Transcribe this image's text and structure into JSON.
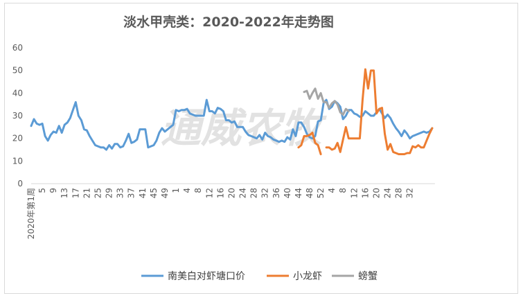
{
  "chart_data": {
    "type": "line",
    "title": "淡水甲壳类：2020-2022年走势图",
    "watermark": "通威农牧",
    "ylim": [
      0,
      60
    ],
    "yticks": [
      "0",
      "10",
      "20",
      "30",
      "40",
      "50",
      "60"
    ],
    "first_x_label": "2020年第1周",
    "x_tick_labels": [
      "5",
      "9",
      "13",
      "17",
      "21",
      "25",
      "29",
      "33",
      "37",
      "41",
      "45",
      "49",
      "1",
      "4",
      "8",
      "12",
      "16",
      "20",
      "24",
      "28",
      "32",
      "36",
      "40",
      "44",
      "48",
      "52",
      "4",
      "8",
      "12",
      "16",
      "20",
      "24",
      "28",
      "32"
    ],
    "grid": false,
    "legend_position": "bottom",
    "series": [
      {
        "name": "南美白对虾塘口价",
        "color": "#5b9bd5",
        "start_index": 0,
        "values": [
          25.5,
          28.5,
          26.5,
          26,
          26.5,
          21,
          19,
          21.5,
          23,
          22.5,
          25.5,
          22.5,
          26,
          27,
          29,
          32.5,
          36,
          30,
          28,
          24,
          23.5,
          21,
          19,
          17,
          16.5,
          16,
          16,
          15,
          17,
          15.5,
          17.5,
          17.5,
          16,
          16.5,
          19,
          22,
          18,
          18.5,
          19.5,
          24,
          24,
          24,
          16,
          16.5,
          17,
          19,
          22.5,
          24.5,
          23,
          24,
          25,
          26,
          32.5,
          32,
          32.5,
          32.5,
          33,
          31,
          30.5,
          30,
          30,
          30,
          30,
          37,
          32,
          32,
          31,
          33.5,
          33,
          32,
          28,
          28,
          27,
          27.5,
          25,
          25,
          25,
          23,
          21.5,
          21,
          20.5,
          20,
          21.5,
          19.5,
          22.5,
          21,
          20.5,
          19.5,
          19,
          18.5,
          19,
          18.5,
          20.5,
          19.5,
          24,
          21,
          27,
          27,
          25,
          22,
          20.5,
          20,
          21,
          27.5,
          28,
          35.5,
          37,
          33,
          34,
          36.5,
          35.5,
          34,
          28.5,
          30,
          32.5,
          32.5,
          31,
          30.5,
          29.5,
          30,
          32,
          31,
          30,
          30,
          31.5,
          33,
          31,
          29,
          30.5,
          29,
          26.5,
          24.5,
          23,
          21,
          23.5,
          22,
          20,
          21,
          21.5,
          22,
          22.5,
          23,
          22.5,
          23,
          24.5
        ]
      },
      {
        "name": "小龙虾",
        "color": "#ed7d31",
        "segments": [
          {
            "start_index": 96,
            "values": [
              16,
              17,
              21,
              21,
              21.5,
              22.5,
              18,
              17,
              13
            ]
          },
          {
            "start_index": 106,
            "values": [
              16,
              16,
              15,
              15.5,
              18,
              14,
              19.5,
              25,
              20,
              20,
              20,
              20,
              20,
              37,
              50.5,
              42,
              50,
              50,
              31,
              33,
              33.5,
              22,
              15,
              17.5,
              14,
              13.5,
              13,
              13,
              13,
              13.5,
              13.5,
              16.5,
              16,
              17,
              16,
              16,
              19,
              22,
              24.5
            ]
          }
        ]
      },
      {
        "name": "螃蟹",
        "color": "#a5a5a5",
        "segments": [
          {
            "start_index": 98,
            "values": [
              40.5,
              41,
              37.5,
              40,
              42,
              37.5,
              40,
              36,
              36,
              33.5,
              35.5,
              36.5,
              35,
              31.5,
              30.5,
              33,
              32
            ]
          }
        ]
      }
    ]
  }
}
